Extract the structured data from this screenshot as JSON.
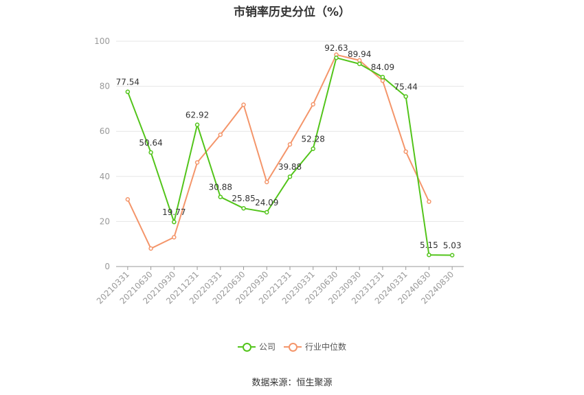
{
  "chart_data": {
    "type": "line",
    "title": "市销率历史分位（%）",
    "categories": [
      "20210331",
      "20210630",
      "20210930",
      "20211231",
      "20220331",
      "20220630",
      "20220930",
      "20221231",
      "20230331",
      "20230630",
      "20230930",
      "20231231",
      "20240331",
      "20240630",
      "20240830"
    ],
    "ylim": [
      0,
      100
    ],
    "yticks": [
      0,
      20,
      40,
      60,
      80,
      100
    ],
    "grid": true,
    "legend_position": "bottom",
    "series": [
      {
        "name": "公司",
        "color": "#52c41a",
        "labeled": true,
        "values": [
          77.54,
          50.64,
          19.77,
          62.92,
          30.88,
          25.85,
          24.09,
          39.88,
          52.28,
          92.63,
          89.94,
          84.09,
          75.44,
          5.15,
          5.03
        ]
      },
      {
        "name": "行业中位数",
        "color": "#f4956a",
        "labeled": false,
        "values": [
          29.8,
          8.0,
          13.0,
          46.2,
          58.5,
          71.8,
          37.5,
          54.2,
          72.0,
          94.0,
          91.5,
          82.5,
          51.0,
          28.8,
          null
        ]
      }
    ]
  },
  "source": "数据来源：恒生聚源"
}
